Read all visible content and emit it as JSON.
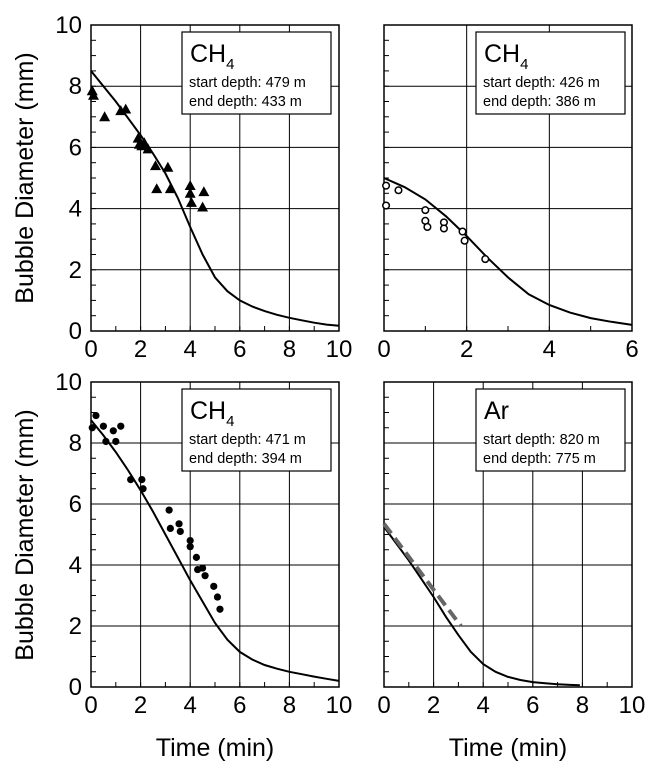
{
  "figure": {
    "y_axis_label": "Bubble Diameter (mm)",
    "x_axis_label": "Time (min)"
  },
  "chart_data": [
    {
      "type": "scatter",
      "panel": "top-left",
      "gas": "CH",
      "gas_subscript": "4",
      "start_depth_text": "start depth: 479 m",
      "end_depth_text": "end depth: 433 m",
      "xlim": [
        0,
        10
      ],
      "ylim": [
        0,
        10
      ],
      "xticks": [
        0,
        2,
        4,
        6,
        8,
        10
      ],
      "yticks": [
        0,
        2,
        4,
        6,
        8,
        10
      ],
      "show_x_tick_labels": true,
      "show_y_tick_labels": true,
      "grid": true,
      "marker": "triangle",
      "points": [
        [
          0.05,
          7.85
        ],
        [
          0.1,
          7.7
        ],
        [
          0.55,
          7.0
        ],
        [
          1.2,
          7.2
        ],
        [
          1.4,
          7.25
        ],
        [
          1.9,
          6.3
        ],
        [
          1.95,
          6.1
        ],
        [
          2.05,
          6.05
        ],
        [
          2.15,
          6.15
        ],
        [
          2.3,
          5.95
        ],
        [
          2.6,
          5.4
        ],
        [
          2.65,
          4.65
        ],
        [
          3.1,
          5.35
        ],
        [
          3.2,
          4.65
        ],
        [
          4.0,
          4.75
        ],
        [
          4.0,
          4.5
        ],
        [
          4.05,
          4.2
        ],
        [
          4.5,
          4.05
        ],
        [
          4.55,
          4.55
        ]
      ],
      "model_curve": [
        [
          0,
          8.5
        ],
        [
          0.5,
          8.0
        ],
        [
          1,
          7.5
        ],
        [
          1.5,
          6.95
        ],
        [
          2,
          6.4
        ],
        [
          2.5,
          5.8
        ],
        [
          3,
          5.15
        ],
        [
          3.5,
          4.35
        ],
        [
          4,
          3.4
        ],
        [
          4.5,
          2.5
        ],
        [
          5,
          1.75
        ],
        [
          5.5,
          1.3
        ],
        [
          6,
          1.0
        ],
        [
          6.5,
          0.8
        ],
        [
          7,
          0.65
        ],
        [
          7.5,
          0.53
        ],
        [
          8,
          0.43
        ],
        [
          8.5,
          0.35
        ],
        [
          9,
          0.27
        ],
        [
          9.5,
          0.21
        ],
        [
          10,
          0.17
        ]
      ],
      "model_style": "solid"
    },
    {
      "type": "scatter",
      "panel": "top-right",
      "gas": "CH",
      "gas_subscript": "4",
      "start_depth_text": "start depth: 426 m",
      "end_depth_text": "end depth: 386 m",
      "xlim": [
        0,
        6
      ],
      "ylim": [
        0,
        10
      ],
      "xticks": [
        0,
        2,
        4,
        6
      ],
      "yticks": [
        0,
        2,
        4,
        6,
        8,
        10
      ],
      "show_x_tick_labels": true,
      "show_y_tick_labels": false,
      "grid": true,
      "marker": "open-circle",
      "points": [
        [
          0.05,
          4.75
        ],
        [
          0.05,
          4.1
        ],
        [
          0.35,
          4.6
        ],
        [
          1.0,
          3.95
        ],
        [
          1.0,
          3.6
        ],
        [
          1.05,
          3.4
        ],
        [
          1.45,
          3.55
        ],
        [
          1.45,
          3.35
        ],
        [
          1.9,
          3.25
        ],
        [
          1.95,
          2.95
        ],
        [
          2.45,
          2.35
        ]
      ],
      "model_curve": [
        [
          0,
          5.0
        ],
        [
          0.5,
          4.7
        ],
        [
          1,
          4.3
        ],
        [
          1.5,
          3.75
        ],
        [
          2,
          3.1
        ],
        [
          2.5,
          2.4
        ],
        [
          3,
          1.75
        ],
        [
          3.5,
          1.2
        ],
        [
          4,
          0.85
        ],
        [
          4.5,
          0.6
        ],
        [
          5,
          0.42
        ],
        [
          5.5,
          0.3
        ],
        [
          6,
          0.2
        ]
      ],
      "model_style": "solid"
    },
    {
      "type": "scatter",
      "panel": "bottom-left",
      "gas": "CH",
      "gas_subscript": "4",
      "start_depth_text": "start depth: 471 m",
      "end_depth_text": "end depth: 394 m",
      "xlim": [
        0,
        10
      ],
      "ylim": [
        0,
        10
      ],
      "xticks": [
        0,
        2,
        4,
        6,
        8,
        10
      ],
      "yticks": [
        0,
        2,
        4,
        6,
        8,
        10
      ],
      "show_x_tick_labels": true,
      "show_y_tick_labels": true,
      "grid": true,
      "marker": "filled-circle",
      "points": [
        [
          0.05,
          8.5
        ],
        [
          0.2,
          8.9
        ],
        [
          0.5,
          8.55
        ],
        [
          0.6,
          8.05
        ],
        [
          0.9,
          8.4
        ],
        [
          1.0,
          8.05
        ],
        [
          1.2,
          8.55
        ],
        [
          1.6,
          6.8
        ],
        [
          2.05,
          6.8
        ],
        [
          2.1,
          6.5
        ],
        [
          3.15,
          5.8
        ],
        [
          3.2,
          5.2
        ],
        [
          3.55,
          5.35
        ],
        [
          3.6,
          5.1
        ],
        [
          4.0,
          4.8
        ],
        [
          4.0,
          4.6
        ],
        [
          4.25,
          4.25
        ],
        [
          4.3,
          3.85
        ],
        [
          4.5,
          3.9
        ],
        [
          4.6,
          3.65
        ],
        [
          4.95,
          3.3
        ],
        [
          5.1,
          2.95
        ],
        [
          5.2,
          2.55
        ]
      ],
      "model_curve": [
        [
          0,
          8.75
        ],
        [
          0.5,
          8.25
        ],
        [
          1,
          7.7
        ],
        [
          1.5,
          7.1
        ],
        [
          2,
          6.45
        ],
        [
          2.5,
          5.75
        ],
        [
          3,
          5.0
        ],
        [
          3.5,
          4.25
        ],
        [
          4,
          3.5
        ],
        [
          4.5,
          2.8
        ],
        [
          5,
          2.1
        ],
        [
          5.5,
          1.55
        ],
        [
          6,
          1.15
        ],
        [
          6.5,
          0.9
        ],
        [
          7,
          0.72
        ],
        [
          7.5,
          0.6
        ],
        [
          8,
          0.5
        ],
        [
          8.5,
          0.42
        ],
        [
          9,
          0.34
        ],
        [
          9.5,
          0.27
        ],
        [
          10,
          0.2
        ]
      ],
      "model_style": "solid"
    },
    {
      "type": "line",
      "panel": "bottom-right",
      "gas": "Ar",
      "gas_subscript": "",
      "start_depth_text": "start depth: 820 m",
      "end_depth_text": "end depth: 775 m",
      "xlim": [
        0,
        10
      ],
      "ylim": [
        0,
        10
      ],
      "xticks": [
        0,
        2,
        4,
        6,
        8,
        10
      ],
      "yticks": [
        0,
        2,
        4,
        6,
        8,
        10
      ],
      "show_x_tick_labels": true,
      "show_y_tick_labels": false,
      "grid": true,
      "marker": "none",
      "points": [],
      "model_curve": [
        [
          0,
          5.25
        ],
        [
          0.5,
          4.7
        ],
        [
          1,
          4.15
        ],
        [
          1.5,
          3.55
        ],
        [
          2,
          2.95
        ],
        [
          2.5,
          2.3
        ],
        [
          3,
          1.7
        ],
        [
          3.5,
          1.15
        ],
        [
          4,
          0.75
        ],
        [
          4.5,
          0.5
        ],
        [
          5,
          0.33
        ],
        [
          5.5,
          0.23
        ],
        [
          6,
          0.16
        ],
        [
          6.5,
          0.12
        ],
        [
          7,
          0.09
        ],
        [
          7.5,
          0.07
        ],
        [
          7.9,
          0.06
        ]
      ],
      "model_style": "solid",
      "fit_line": [
        [
          0,
          5.35
        ],
        [
          3.1,
          2.0
        ]
      ],
      "fit_style": "dashed",
      "fit_color": "#666666"
    }
  ]
}
